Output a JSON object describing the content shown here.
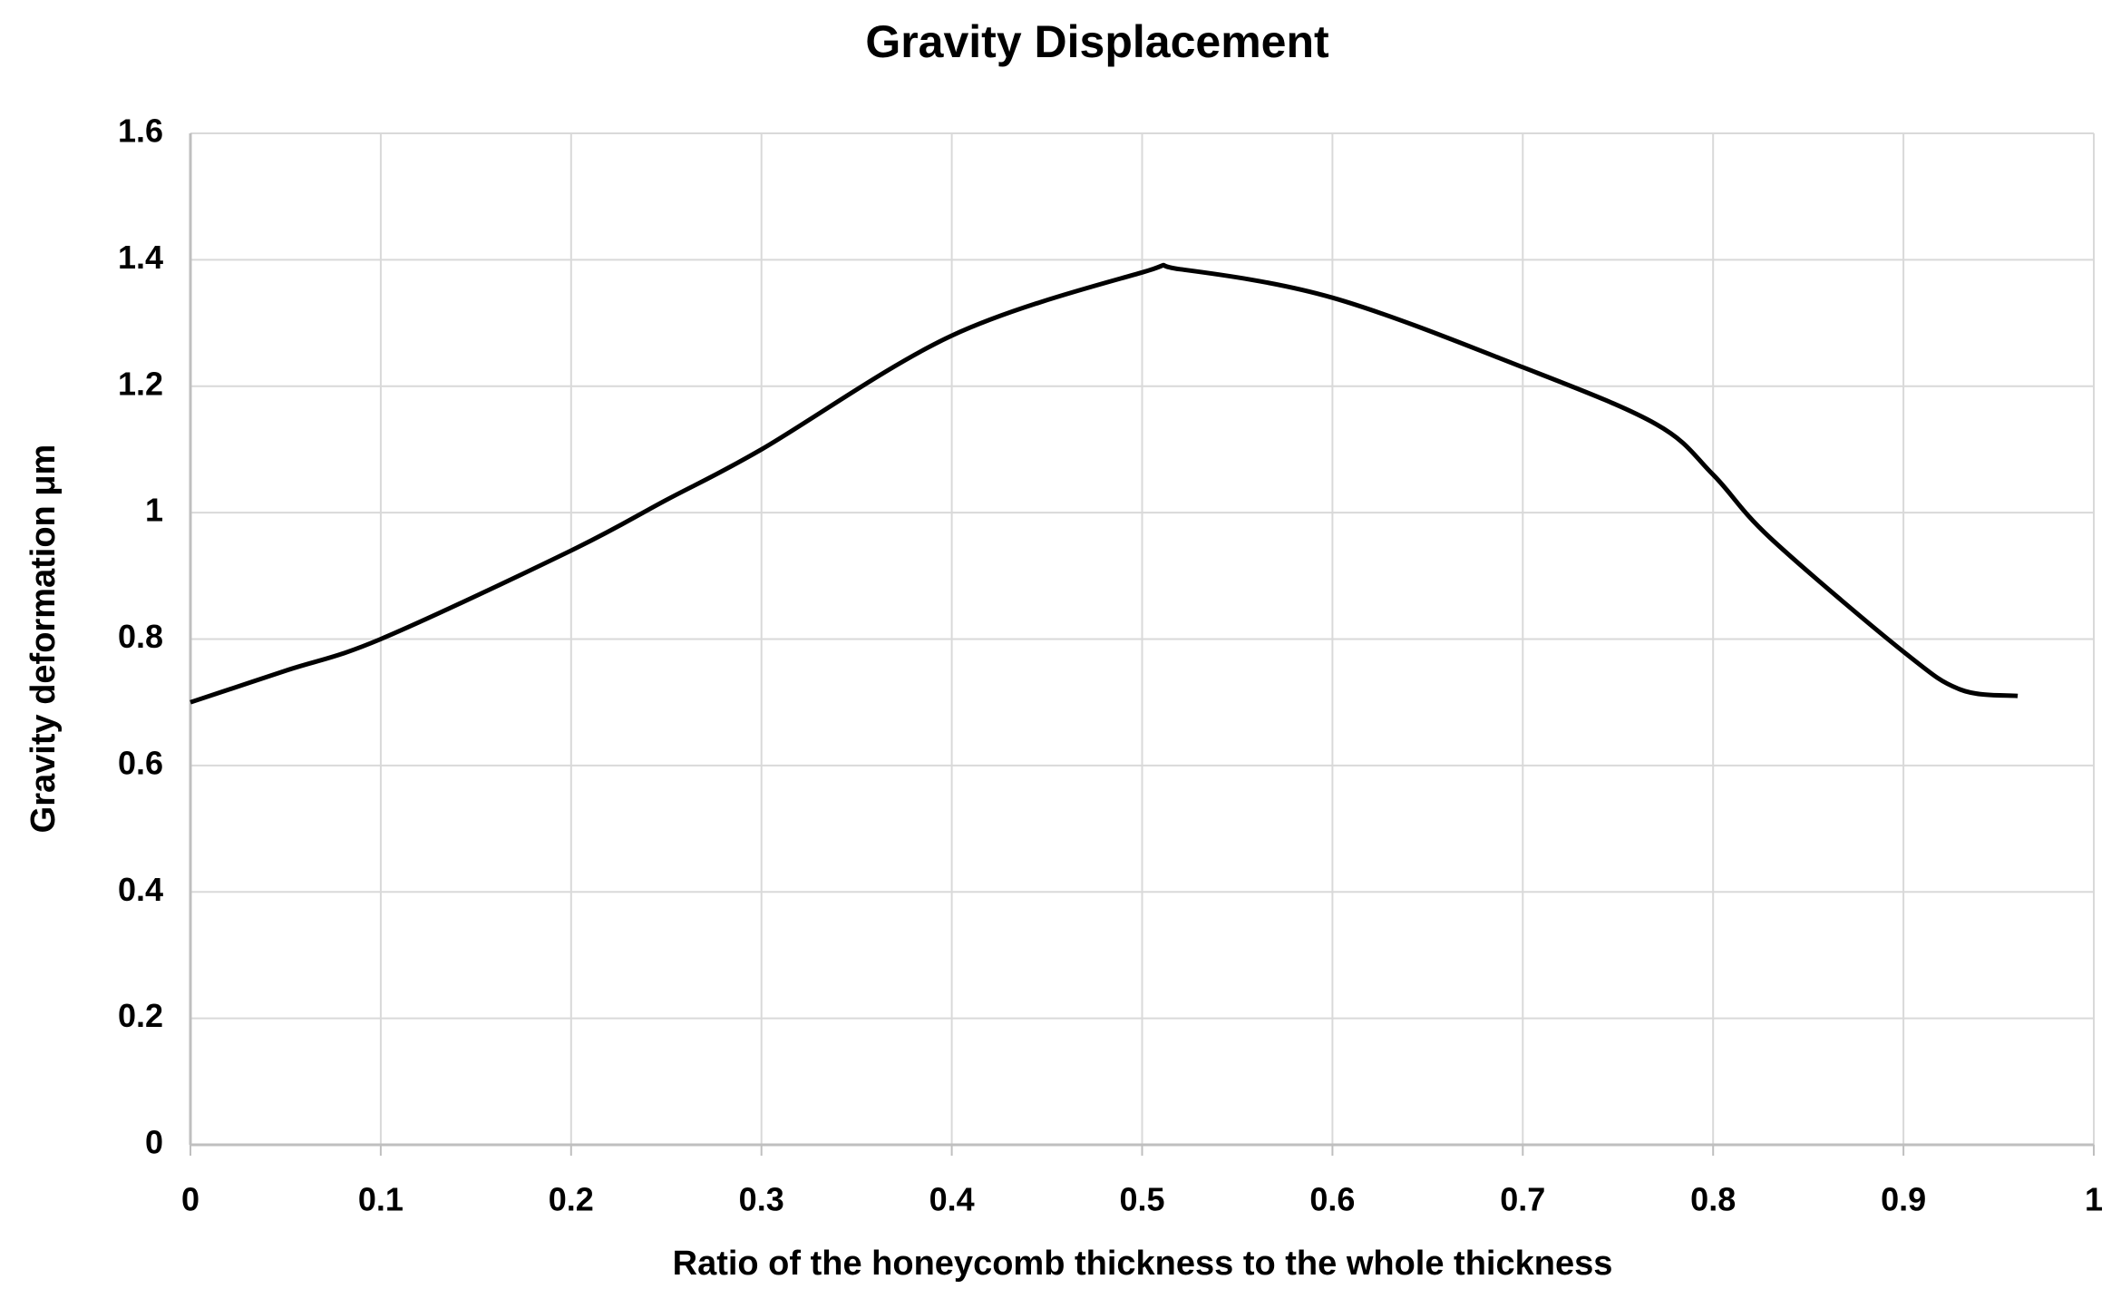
{
  "chart_data": {
    "type": "line",
    "title": "Gravity Displacement",
    "x_label": "Ratio of the honeycomb thickness to the whole thickness",
    "y_label": "Gravity deformation μm",
    "x": [
      0,
      0.05,
      0.1,
      0.2,
      0.25,
      0.3,
      0.4,
      0.5,
      0.52,
      0.6,
      0.7,
      0.77,
      0.8,
      0.83,
      0.9,
      0.93,
      0.96
    ],
    "series": [
      {
        "name": "Gravity deformation",
        "color": "#000000",
        "values": [
          0.7,
          0.75,
          0.8,
          0.94,
          1.02,
          1.1,
          1.28,
          1.38,
          1.385,
          1.34,
          1.23,
          1.14,
          1.06,
          0.96,
          0.78,
          0.72,
          0.71
        ]
      }
    ],
    "xlim": [
      0,
      1
    ],
    "xticks": [
      0,
      0.1,
      0.2,
      0.3,
      0.4,
      0.5,
      0.6,
      0.7,
      0.8,
      0.9,
      1
    ],
    "ylim": [
      0,
      1.6
    ],
    "yticks": [
      0,
      0.2,
      0.4,
      0.6,
      0.8,
      1,
      1.2,
      1.4,
      1.6
    ],
    "grid": true
  }
}
